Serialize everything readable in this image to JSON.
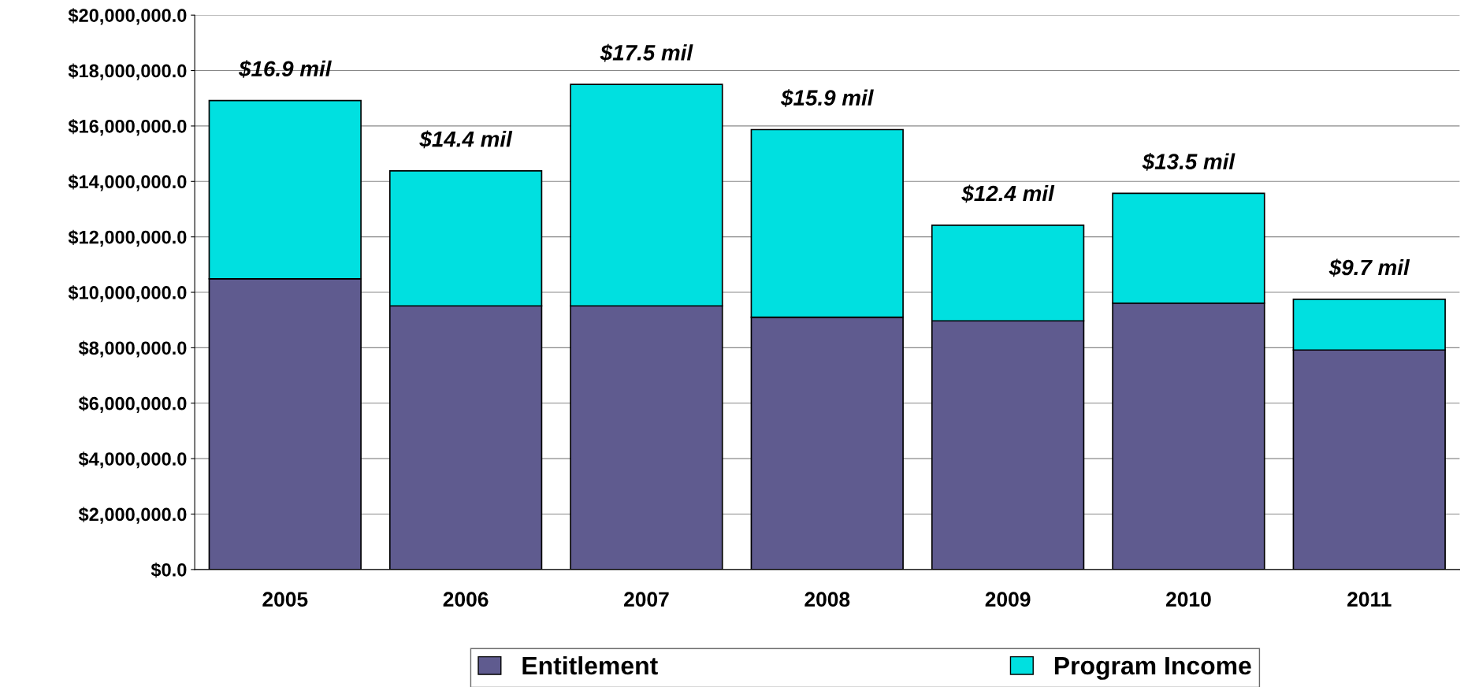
{
  "chart_data": {
    "type": "bar",
    "stacked": true,
    "categories": [
      "2005",
      "2006",
      "2007",
      "2008",
      "2009",
      "2010",
      "2011"
    ],
    "series": [
      {
        "name": "Entitlement",
        "color": "#5f5b8f",
        "values": [
          10490000,
          9510000,
          9510000,
          9100000,
          8970000,
          9610000,
          7920000
        ]
      },
      {
        "name": "Program Income",
        "color": "#00e0e0",
        "values": [
          6430000,
          4870000,
          7990000,
          6770000,
          3450000,
          3960000,
          1830000
        ]
      }
    ],
    "annotations": [
      {
        "text": "$16.9 mil",
        "x": "2005",
        "y": 16920000
      },
      {
        "text": "$14.4 mil",
        "x": "2006",
        "y": 14380000
      },
      {
        "text": "$17.5 mil",
        "x": "2007",
        "y": 17500000
      },
      {
        "text": "$15.9 mil",
        "x": "2008",
        "y": 15870000
      },
      {
        "text": "$12.4 mil",
        "x": "2009",
        "y": 12420000
      },
      {
        "text": "$13.5 mil",
        "x": "2010",
        "y": 13570000
      },
      {
        "text": "$9.7 mil",
        "x": "2011",
        "y": 9750000
      }
    ],
    "ylim": [
      0,
      20000000
    ],
    "yticks": [
      {
        "value": 0,
        "label": "$0.0"
      },
      {
        "value": 2000000,
        "label": "$2,000,000.0"
      },
      {
        "value": 4000000,
        "label": "$4,000,000.0"
      },
      {
        "value": 6000000,
        "label": "$6,000,000.0"
      },
      {
        "value": 8000000,
        "label": "$8,000,000.0"
      },
      {
        "value": 10000000,
        "label": "$10,000,000.0"
      },
      {
        "value": 12000000,
        "label": "$12,000,000.0"
      },
      {
        "value": 14000000,
        "label": "$14,000,000.0"
      },
      {
        "value": 16000000,
        "label": "$16,000,000.0"
      },
      {
        "value": 18000000,
        "label": "$18,000,000.0"
      },
      {
        "value": 20000000,
        "label": "$20,000,000.0"
      }
    ],
    "grid": "y",
    "legend": "bottom"
  }
}
